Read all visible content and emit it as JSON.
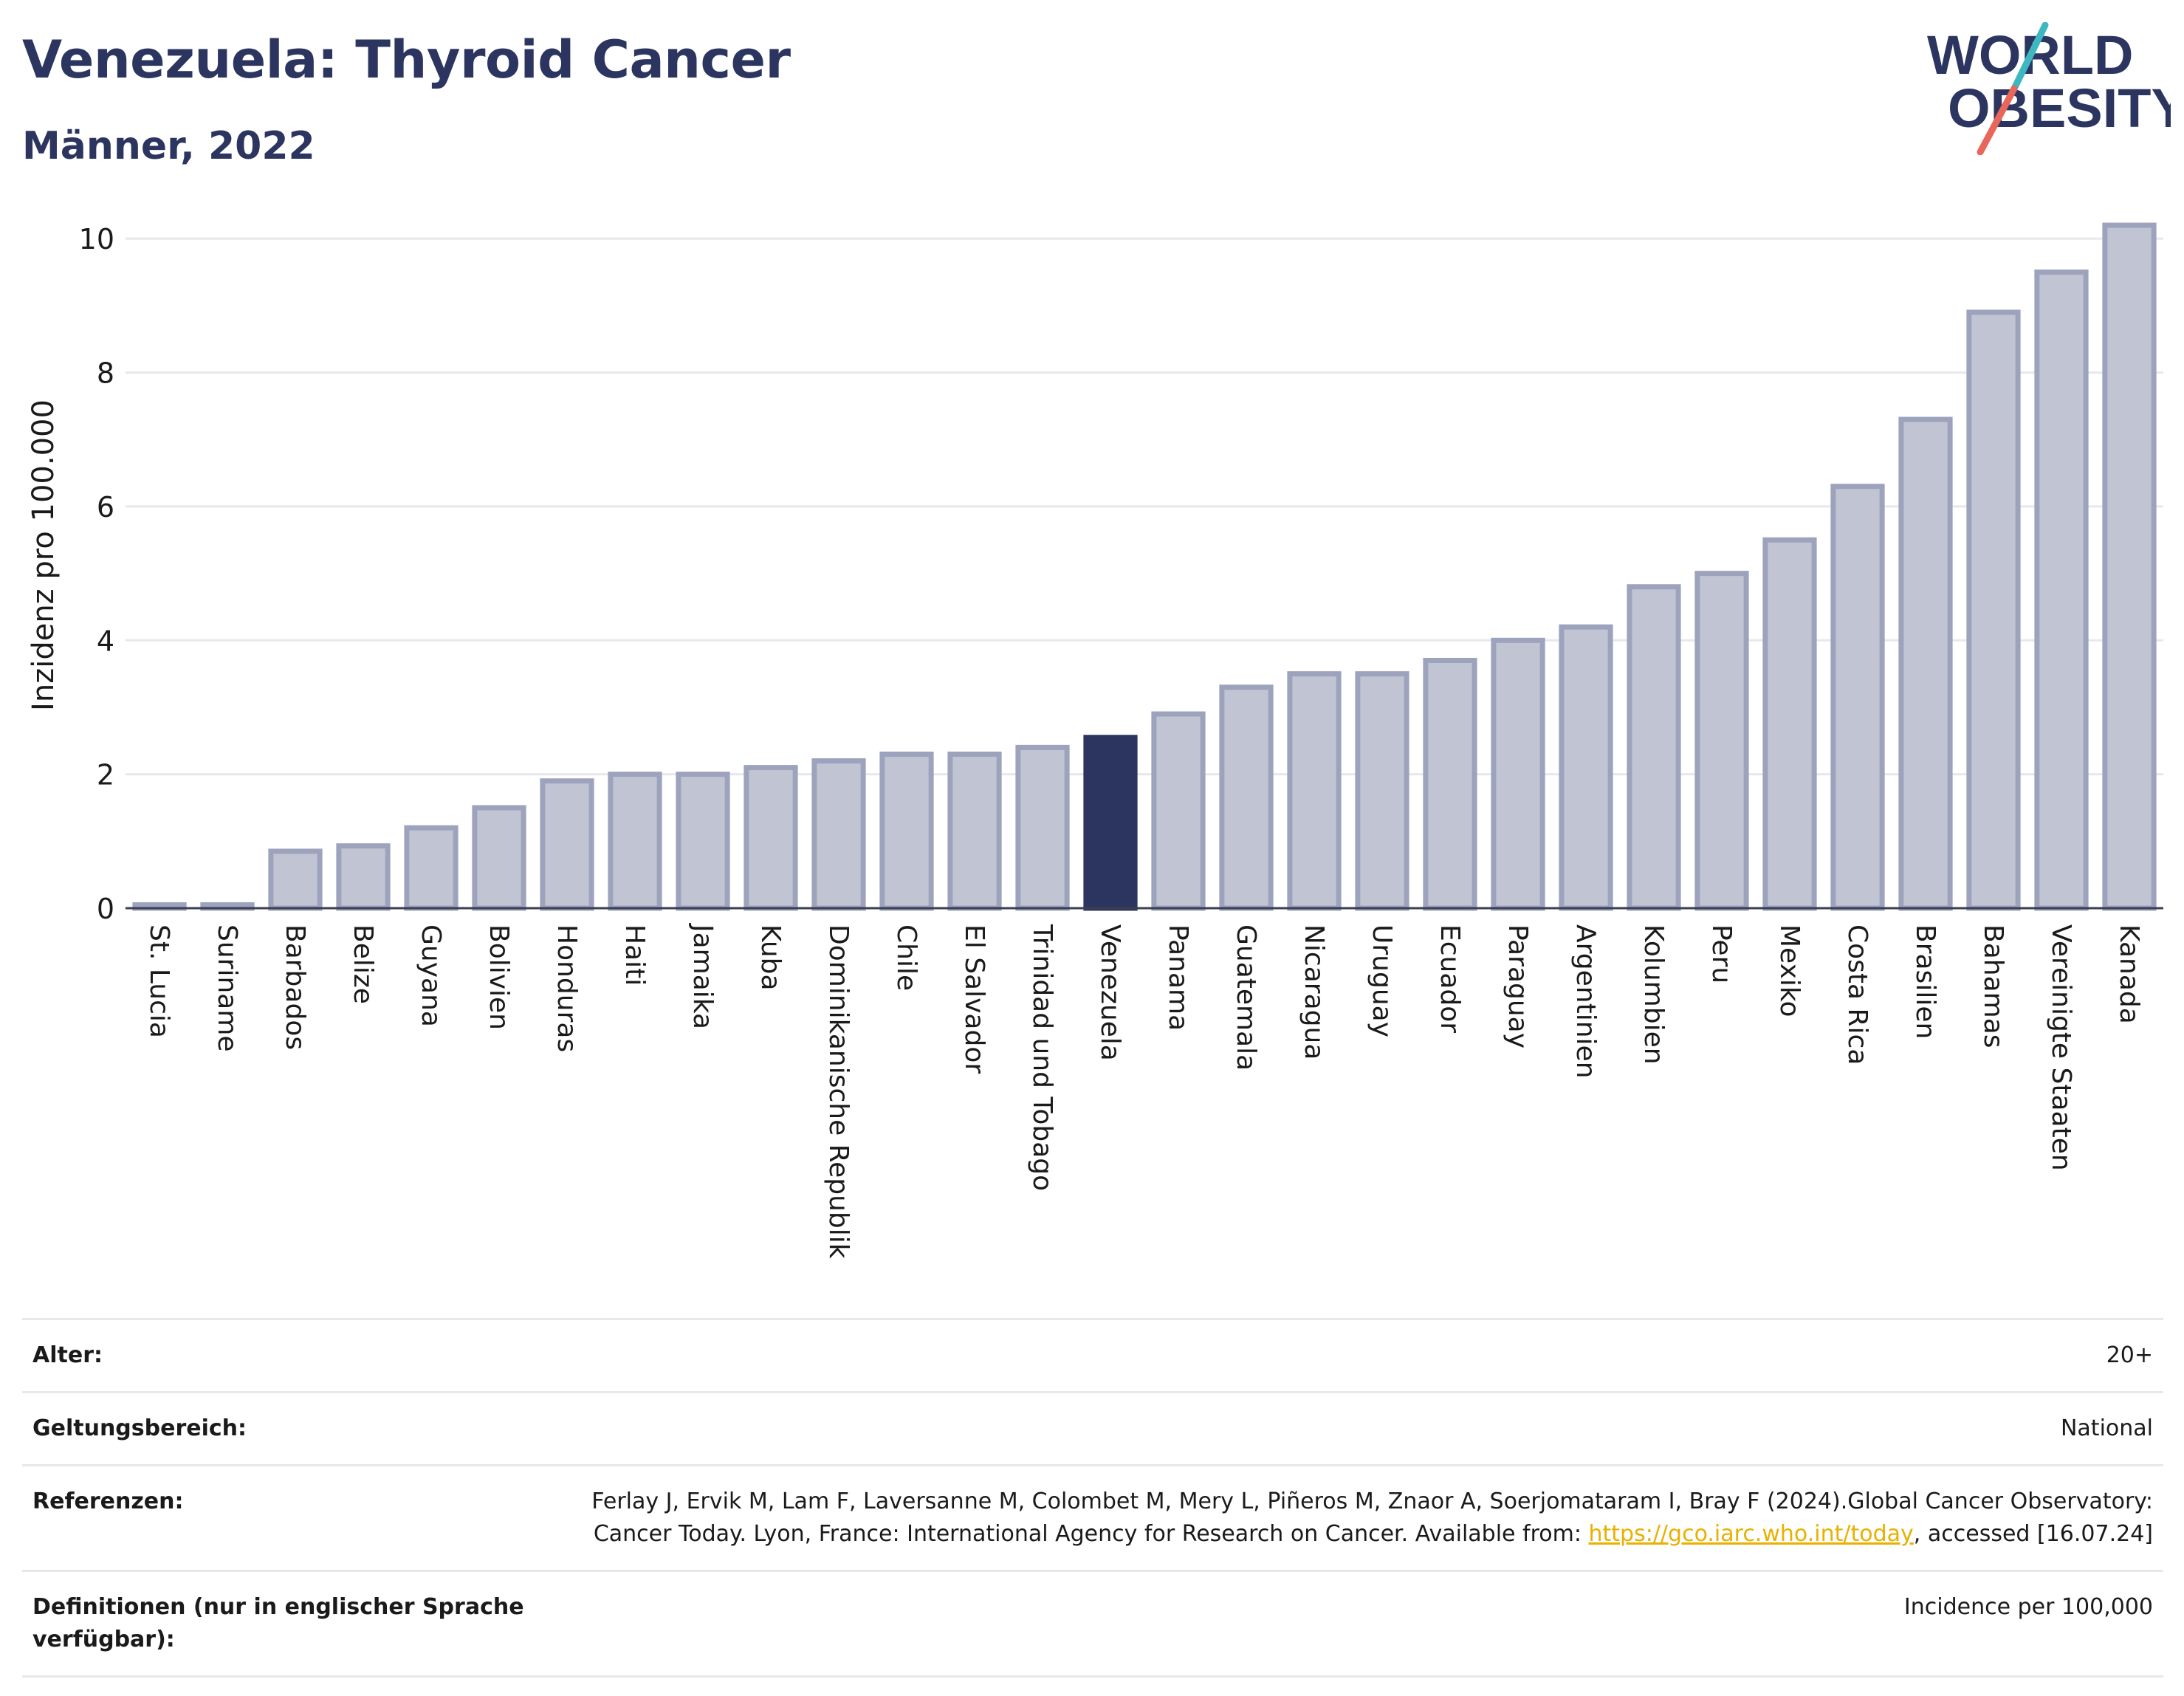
{
  "header": {
    "title": "Venezuela: Thyroid Cancer",
    "subtitle": "Männer, 2022"
  },
  "logo": {
    "line1": "WORLD",
    "line2": "OBESITY",
    "icon": "world-obesity-logo",
    "slash_colors": [
      "#3db8c0",
      "#e8665a"
    ]
  },
  "colors": {
    "bar": "#c1c4d2",
    "bar_border": "#9ea3bd",
    "highlight": "#2c3560",
    "grid": "#e6e8ec",
    "text": "#1a1a1a",
    "title": "#2c3560",
    "link": "#e8b100"
  },
  "chart_data": {
    "type": "bar",
    "title": "Venezuela: Thyroid Cancer",
    "subtitle": "Männer, 2022",
    "xlabel": "",
    "ylabel": "Inzidenz pro 100.000",
    "ylim": [
      0,
      10.3
    ],
    "yticks": [
      0,
      2,
      4,
      6,
      8,
      10
    ],
    "grid": true,
    "highlight": "Venezuela",
    "categories": [
      "St. Lucia",
      "Suriname",
      "Barbados",
      "Belize",
      "Guyana",
      "Bolivien",
      "Honduras",
      "Haiti",
      "Jamaika",
      "Kuba",
      "Dominikanische Republik",
      "Chile",
      "El Salvador",
      "Trinidad und Tobago",
      "Venezuela",
      "Panama",
      "Guatemala",
      "Nicaragua",
      "Uruguay",
      "Ecuador",
      "Paraguay",
      "Argentinien",
      "Kolumbien",
      "Peru",
      "Mexiko",
      "Costa Rica",
      "Brasilien",
      "Bahamas",
      "Vereinigte Staaten",
      "Kanada"
    ],
    "values": [
      0.05,
      0.05,
      0.85,
      0.93,
      1.2,
      1.5,
      1.9,
      2.0,
      2.0,
      2.1,
      2.2,
      2.3,
      2.3,
      2.4,
      2.55,
      2.9,
      3.3,
      3.5,
      3.5,
      3.7,
      4.0,
      4.2,
      4.8,
      5.0,
      5.5,
      6.3,
      7.3,
      8.9,
      9.5,
      10.2
    ]
  },
  "meta": [
    {
      "label": "Alter:",
      "value": "20+"
    },
    {
      "label": "Geltungsbereich:",
      "value": "National"
    },
    {
      "label": "Referenzen:",
      "value_pre": "Ferlay J, Ervik M, Lam F, Laversanne M, Colombet M, Mery L, Piñeros M, Znaor A, Soerjomataram I, Bray F (2024).Global Cancer Observatory: Cancer Today. Lyon, France: International Agency for Research on Cancer. Available from: ",
      "link": "https://gco.iarc.who.int/today",
      "value_post": ", accessed [16.07.24]"
    },
    {
      "label": "Definitionen (nur in englischer Sprache verfügbar):",
      "value": "Incidence per 100,000"
    }
  ]
}
